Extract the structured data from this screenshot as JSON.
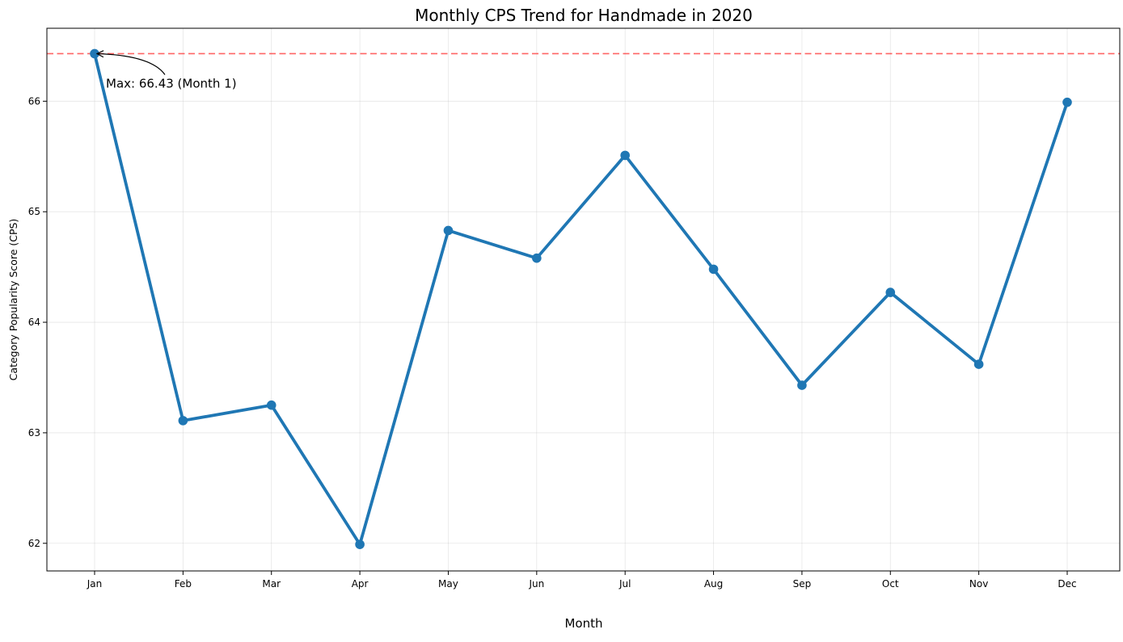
{
  "chart_data": {
    "type": "line",
    "title": "Monthly CPS Trend for Handmade in 2020",
    "xlabel": "Month",
    "ylabel": "Category Popularity Score (CPS)",
    "categories": [
      "Jan",
      "Feb",
      "Mar",
      "Apr",
      "May",
      "Jun",
      "Jul",
      "Aug",
      "Sep",
      "Oct",
      "Nov",
      "Dec"
    ],
    "series": [
      {
        "values": [
          66.43,
          63.11,
          63.25,
          61.99,
          64.83,
          64.58,
          65.51,
          64.48,
          63.43,
          64.27,
          63.62,
          65.99
        ]
      }
    ],
    "ylim": [
      61.75,
      66.66
    ],
    "yticks": [
      62,
      63,
      64,
      65,
      66
    ],
    "ytick_labels": [
      "62",
      "63",
      "64",
      "65",
      "66"
    ],
    "grid": true,
    "reference_line": {
      "y": 66.43,
      "color": "#ff0000",
      "style": "dashed"
    },
    "annotation": {
      "text": "Max: 66.43 (Month 1)",
      "target_index": 0
    },
    "colors": {
      "series": "#1f77b4",
      "reference": "#ff0000"
    }
  }
}
